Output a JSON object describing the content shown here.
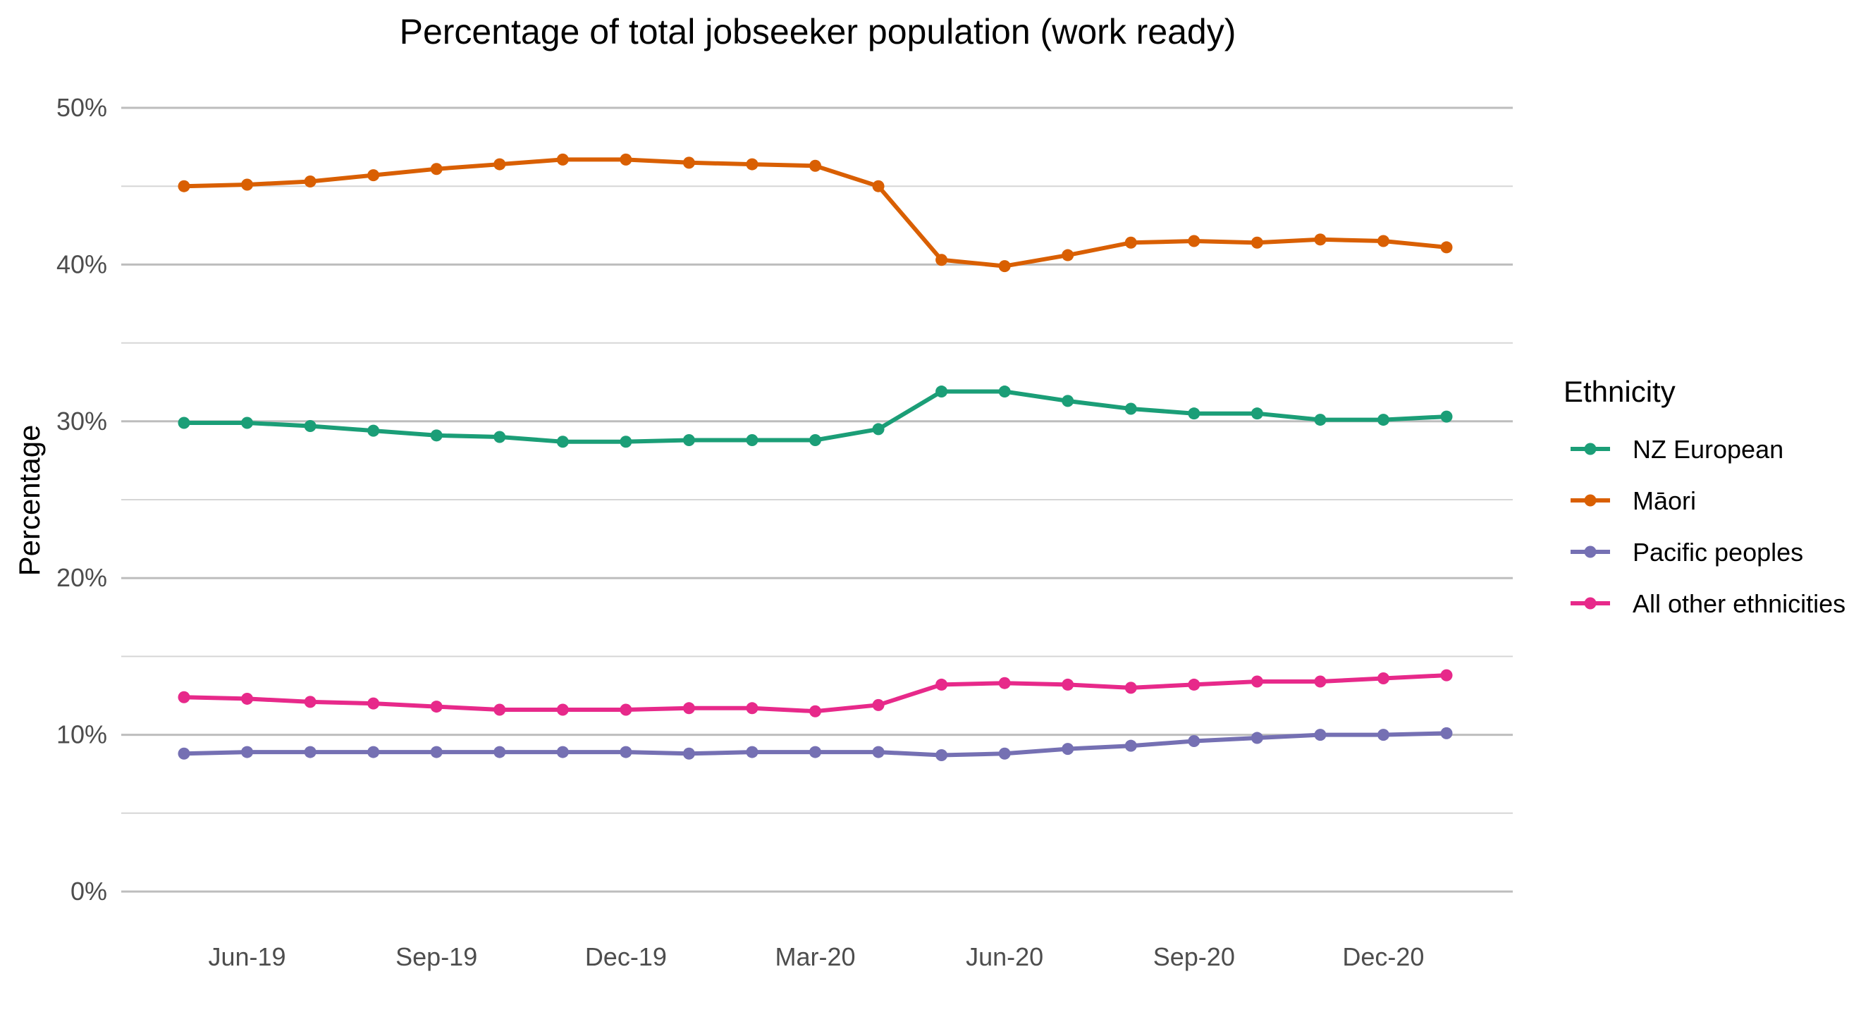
{
  "chart_data": {
    "type": "line",
    "title": "Percentage of total jobseeker population (work ready)",
    "xlabel": "",
    "ylabel": "Percentage",
    "ylim": [
      0,
      50
    ],
    "yticks": [
      0,
      10,
      20,
      30,
      40,
      50
    ],
    "ytick_labels": [
      "0%",
      "10%",
      "20%",
      "30%",
      "40%",
      "50%"
    ],
    "xtick_labels": [
      "Jun-19",
      "Sep-19",
      "Dec-19",
      "Mar-20",
      "Jun-20",
      "Sep-20",
      "Dec-20"
    ],
    "xtick_positions": [
      "2019-06",
      "2019-09",
      "2019-12",
      "2020-03",
      "2020-06",
      "2020-09",
      "2020-12"
    ],
    "x": [
      "2019-05",
      "2019-06",
      "2019-07",
      "2019-08",
      "2019-09",
      "2019-10",
      "2019-11",
      "2019-12",
      "2020-01",
      "2020-02",
      "2020-03",
      "2020-04",
      "2020-05",
      "2020-06",
      "2020-07",
      "2020-08",
      "2020-09",
      "2020-10",
      "2020-11",
      "2020-12",
      "2021-01"
    ],
    "grid": true,
    "legend_title": "Ethnicity",
    "legend_position": "right",
    "series": [
      {
        "name": "NZ European",
        "color": "#1b9e77",
        "values": [
          29.9,
          29.9,
          29.7,
          29.4,
          29.1,
          29.0,
          28.7,
          28.7,
          28.8,
          28.8,
          28.8,
          29.5,
          31.9,
          31.9,
          31.3,
          30.8,
          30.5,
          30.5,
          30.1,
          30.1,
          30.3
        ]
      },
      {
        "name": "Māori",
        "color": "#d95f02",
        "values": [
          45.0,
          45.1,
          45.3,
          45.7,
          46.1,
          46.4,
          46.7,
          46.7,
          46.5,
          46.4,
          46.3,
          45.0,
          40.3,
          39.9,
          40.6,
          41.4,
          41.5,
          41.4,
          41.6,
          41.5,
          41.1
        ]
      },
      {
        "name": "Pacific peoples",
        "color": "#7570b3",
        "values": [
          8.8,
          8.9,
          8.9,
          8.9,
          8.9,
          8.9,
          8.9,
          8.9,
          8.8,
          8.9,
          8.9,
          8.9,
          8.7,
          8.8,
          9.1,
          9.3,
          9.6,
          9.8,
          10.0,
          10.0,
          10.1
        ]
      },
      {
        "name": "All other ethnicities",
        "color": "#e7298a",
        "values": [
          12.4,
          12.3,
          12.1,
          12.0,
          11.8,
          11.6,
          11.6,
          11.6,
          11.7,
          11.7,
          11.5,
          11.9,
          13.2,
          13.3,
          13.2,
          13.0,
          13.2,
          13.4,
          13.4,
          13.6,
          13.8
        ]
      }
    ]
  }
}
